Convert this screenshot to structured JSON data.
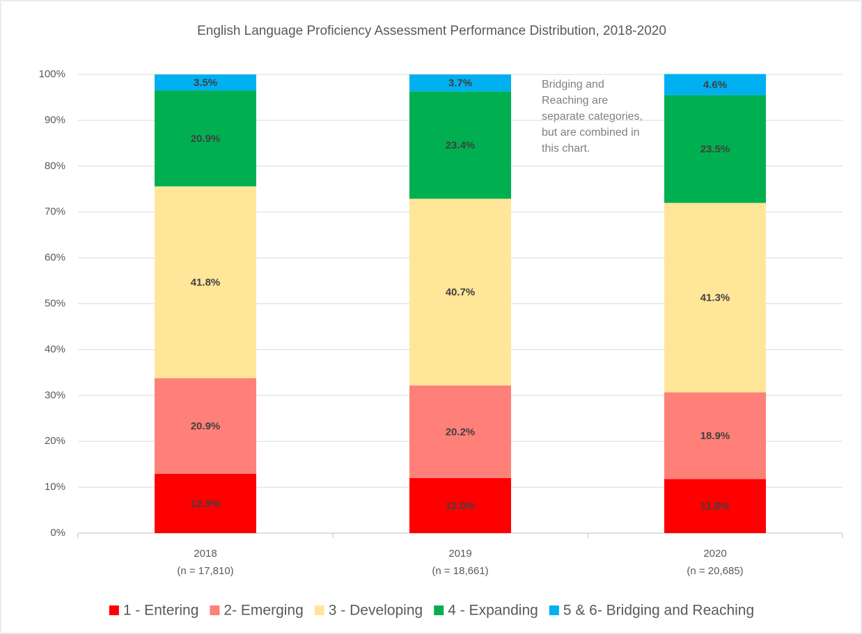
{
  "chart_data": {
    "type": "stacked_bar",
    "title": "English Language Proficiency Assessment Performance Distribution, 2018-2020",
    "categories": [
      "2018",
      "2019",
      "2020"
    ],
    "category_sublabels": [
      "(n = 17,810)",
      "(n = 18,661)",
      "(n = 20,685)"
    ],
    "series": [
      {
        "name": "1 - Entering",
        "color": "#ff0000",
        "values": [
          12.9,
          12.0,
          11.8
        ],
        "value_labels": [
          "12.9%",
          "12.0%",
          "11.8%"
        ]
      },
      {
        "name": "2- Emerging",
        "color": "#ff8079",
        "values": [
          20.9,
          20.2,
          18.9
        ],
        "value_labels": [
          "20.9%",
          "20.2%",
          "18.9%"
        ]
      },
      {
        "name": "3 - Developing",
        "color": "#ffe699",
        "values": [
          41.8,
          40.7,
          41.3
        ],
        "value_labels": [
          "41.8%",
          "40.7%",
          "41.3%"
        ]
      },
      {
        "name": "4 - Expanding",
        "color": "#00b050",
        "values": [
          20.9,
          23.4,
          23.5
        ],
        "value_labels": [
          "20.9%",
          "23.4%",
          "23.5%"
        ]
      },
      {
        "name": "5 & 6- Bridging and Reaching",
        "color": "#00b0f0",
        "values": [
          3.5,
          3.7,
          4.6
        ],
        "value_labels": [
          "3.5%",
          "3.7%",
          "4.6%"
        ]
      }
    ],
    "ylim": [
      0,
      100
    ],
    "yticks": [
      {
        "value": 0,
        "label": "0%"
      },
      {
        "value": 10,
        "label": "10%"
      },
      {
        "value": 20,
        "label": "20%"
      },
      {
        "value": 30,
        "label": "30%"
      },
      {
        "value": 40,
        "label": "40%"
      },
      {
        "value": 50,
        "label": "50%"
      },
      {
        "value": 60,
        "label": "60%"
      },
      {
        "value": 70,
        "label": "70%"
      },
      {
        "value": 80,
        "label": "80%"
      },
      {
        "value": 90,
        "label": "90%"
      },
      {
        "value": 100,
        "label": "100%"
      }
    ],
    "grid": true,
    "legend": "bottom",
    "annotation": "Bridging and Reaching are separate categories, but are combined in this chart."
  }
}
